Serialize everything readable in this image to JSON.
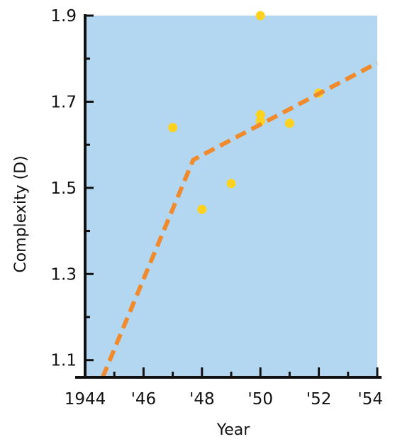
{
  "chart_data": {
    "type": "scatter",
    "title": "",
    "xlabel": "Year",
    "ylabel": "Complexity (D)",
    "xlim": [
      1944,
      1954
    ],
    "ylim": [
      1.06,
      1.9
    ],
    "x_ticks": [
      1944,
      1946,
      1948,
      1950,
      1952,
      1954
    ],
    "x_tick_labels": [
      "1944",
      "'46",
      "'48",
      "'50",
      "'52",
      "'54"
    ],
    "y_ticks": [
      1.1,
      1.3,
      1.5,
      1.7,
      1.9
    ],
    "y_tick_labels": [
      "1.1",
      "1.3",
      "1.5",
      "1.7",
      "1.9"
    ],
    "grid": false,
    "colors": {
      "plot_background": "#b3d7f1",
      "points": "#ffd21f",
      "trend_line": "#f08a2c",
      "axis": "#111111"
    },
    "series": [
      {
        "type": "scatter",
        "points": [
          {
            "x": 1947.0,
            "y": 1.64
          },
          {
            "x": 1948.0,
            "y": 1.45
          },
          {
            "x": 1949.0,
            "y": 1.51
          },
          {
            "x": 1950.0,
            "y": 1.9
          },
          {
            "x": 1950.0,
            "y": 1.67
          },
          {
            "x": 1950.0,
            "y": 1.655
          },
          {
            "x": 1951.0,
            "y": 1.65
          },
          {
            "x": 1952.0,
            "y": 1.72
          }
        ]
      },
      {
        "type": "line",
        "style": "dashed",
        "points": [
          {
            "x": 1944.6,
            "y": 1.06
          },
          {
            "x": 1947.7,
            "y": 1.565
          },
          {
            "x": 1954.0,
            "y": 1.79
          }
        ]
      }
    ]
  }
}
